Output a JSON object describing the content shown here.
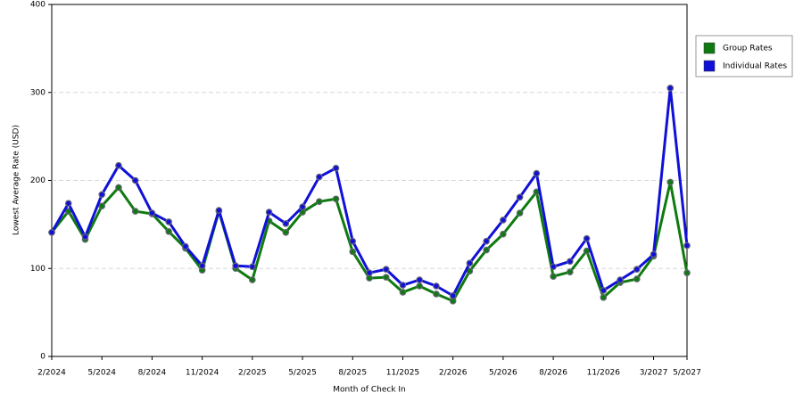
{
  "chart_data": {
    "type": "line",
    "y_label": "Lowest Average Rate (USD)",
    "x_label": "Month of Check In",
    "categories": [
      "2/2024",
      null,
      null,
      "5/2024",
      null,
      null,
      "8/2024",
      null,
      null,
      "11/2024",
      null,
      null,
      "2/2025",
      null,
      null,
      "5/2025",
      null,
      null,
      "8/2025",
      null,
      null,
      "11/2025",
      null,
      null,
      "2/2026",
      null,
      null,
      "5/2026",
      null,
      null,
      "8/2026",
      null,
      null,
      "11/2026",
      null,
      null,
      "3/2027",
      null,
      "5/2027"
    ],
    "series": [
      {
        "name": "Group Rates",
        "color": "#0f7a0f",
        "values": [
          141,
          165,
          133,
          171,
          192,
          165,
          162,
          142,
          123,
          98,
          165,
          100,
          87,
          154,
          141,
          164,
          176,
          179,
          119,
          89,
          90,
          73,
          80,
          71,
          63,
          97,
          121,
          139,
          163,
          187,
          91,
          96,
          120,
          67,
          84,
          88,
          114,
          198,
          95
        ]
      },
      {
        "name": "Individual Rates",
        "color": "#1010d8",
        "values": [
          141,
          174,
          136,
          184,
          217,
          200,
          163,
          153,
          125,
          103,
          166,
          103,
          102,
          164,
          151,
          170,
          204,
          214,
          131,
          95,
          99,
          81,
          87,
          80,
          69,
          106,
          131,
          155,
          181,
          208,
          102,
          108,
          134,
          75,
          87,
          99,
          116,
          305,
          126
        ]
      }
    ],
    "ylim": [
      0,
      400
    ],
    "yticks": [
      0,
      100,
      200,
      300,
      400
    ],
    "grid": true,
    "legend": "right"
  }
}
